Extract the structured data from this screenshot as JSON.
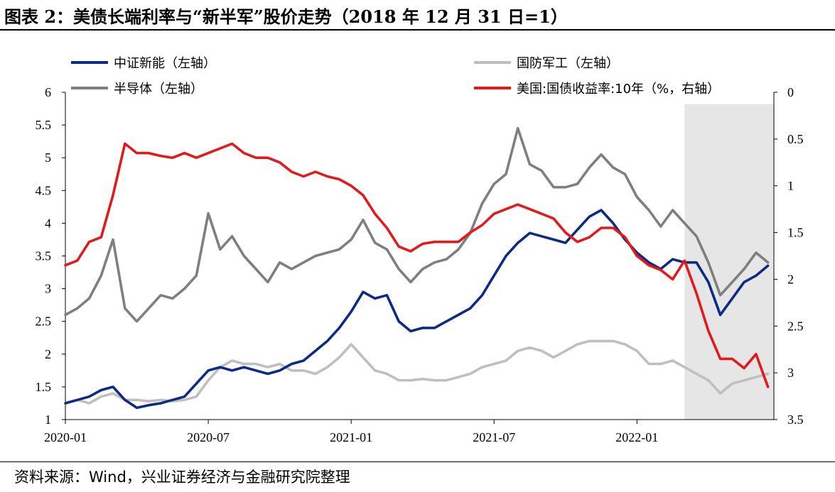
{
  "title": "图表 2：美债长端利率与“新半军”股价走势（2018 年 12 月 31 日=1）",
  "source": "资料来源：Wind，兴业证券经济与金融研究院整理",
  "chart_data": {
    "type": "line",
    "title": "图表 2：美债长端利率与“新半军”股价走势（2018 年 12 月 31 日=1）",
    "x_range": [
      "2020-01",
      "2022-06"
    ],
    "x_ticks": [
      "2020-01",
      "2020-07",
      "2021-01",
      "2021-07",
      "2022-01"
    ],
    "y_left": {
      "range": [
        1,
        6
      ],
      "ticks": [
        "1",
        "1.5",
        "2",
        "2.5",
        "3",
        "3.5",
        "4",
        "4.5",
        "5",
        "5.5",
        "6"
      ]
    },
    "y_right": {
      "range": [
        0,
        3.5
      ],
      "inverted": true,
      "ticks": [
        "0",
        "0.5",
        "1",
        "1.5",
        "2",
        "2.5",
        "3",
        "3.5"
      ]
    },
    "shaded_period": [
      "2022-03",
      "2022-06"
    ],
    "legend_placement": "top",
    "series": [
      {
        "name": "中证新能（左轴）",
        "axis": "left",
        "color": "#0d2b84",
        "points": [
          [
            "2020-01",
            1.25
          ],
          [
            "2020-01-16",
            1.3
          ],
          [
            "2020-02",
            1.35
          ],
          [
            "2020-02-16",
            1.45
          ],
          [
            "2020-03-01",
            1.5
          ],
          [
            "2020-03-16",
            1.3
          ],
          [
            "2020-04",
            1.18
          ],
          [
            "2020-04-16",
            1.22
          ],
          [
            "2020-05",
            1.25
          ],
          [
            "2020-05-16",
            1.3
          ],
          [
            "2020-06",
            1.35
          ],
          [
            "2020-06-16",
            1.55
          ],
          [
            "2020-07",
            1.75
          ],
          [
            "2020-07-16",
            1.8
          ],
          [
            "2020-08",
            1.75
          ],
          [
            "2020-08-16",
            1.8
          ],
          [
            "2020-09",
            1.75
          ],
          [
            "2020-09-16",
            1.7
          ],
          [
            "2020-10",
            1.75
          ],
          [
            "2020-10-16",
            1.85
          ],
          [
            "2020-11",
            1.9
          ],
          [
            "2020-11-16",
            2.05
          ],
          [
            "2020-12",
            2.2
          ],
          [
            "2020-12-16",
            2.4
          ],
          [
            "2021-01",
            2.65
          ],
          [
            "2021-01-16",
            2.95
          ],
          [
            "2021-02",
            2.85
          ],
          [
            "2021-02-16",
            2.9
          ],
          [
            "2021-03",
            2.5
          ],
          [
            "2021-03-16",
            2.35
          ],
          [
            "2021-04",
            2.4
          ],
          [
            "2021-04-16",
            2.4
          ],
          [
            "2021-05",
            2.5
          ],
          [
            "2021-05-16",
            2.6
          ],
          [
            "2021-06",
            2.7
          ],
          [
            "2021-06-16",
            2.9
          ],
          [
            "2021-07",
            3.2
          ],
          [
            "2021-07-16",
            3.5
          ],
          [
            "2021-08",
            3.7
          ],
          [
            "2021-08-16",
            3.85
          ],
          [
            "2021-09",
            3.8
          ],
          [
            "2021-09-16",
            3.75
          ],
          [
            "2021-10",
            3.7
          ],
          [
            "2021-10-16",
            3.9
          ],
          [
            "2021-11",
            4.1
          ],
          [
            "2021-11-16",
            4.2
          ],
          [
            "2021-12",
            4.0
          ],
          [
            "2021-12-16",
            3.75
          ],
          [
            "2022-01",
            3.55
          ],
          [
            "2022-01-16",
            3.4
          ],
          [
            "2022-02",
            3.3
          ],
          [
            "2022-02-16",
            3.45
          ],
          [
            "2022-03",
            3.4
          ],
          [
            "2022-03-16",
            3.4
          ],
          [
            "2022-04",
            3.1
          ],
          [
            "2022-04-16",
            2.6
          ],
          [
            "2022-05",
            2.85
          ],
          [
            "2022-05-16",
            3.1
          ],
          [
            "2022-06",
            3.2
          ],
          [
            "2022-06-16",
            3.35
          ]
        ]
      },
      {
        "name": "国防军工（左轴）",
        "axis": "left",
        "color": "#bfbfbf",
        "points": [
          [
            "2020-01",
            1.25
          ],
          [
            "2020-01-16",
            1.3
          ],
          [
            "2020-02",
            1.25
          ],
          [
            "2020-02-16",
            1.35
          ],
          [
            "2020-03-01",
            1.4
          ],
          [
            "2020-03-16",
            1.3
          ],
          [
            "2020-04",
            1.3
          ],
          [
            "2020-04-16",
            1.28
          ],
          [
            "2020-05",
            1.3
          ],
          [
            "2020-05-16",
            1.28
          ],
          [
            "2020-06",
            1.3
          ],
          [
            "2020-06-16",
            1.35
          ],
          [
            "2020-07",
            1.6
          ],
          [
            "2020-07-16",
            1.8
          ],
          [
            "2020-08",
            1.9
          ],
          [
            "2020-08-16",
            1.85
          ],
          [
            "2020-09",
            1.85
          ],
          [
            "2020-09-16",
            1.8
          ],
          [
            "2020-10",
            1.85
          ],
          [
            "2020-10-16",
            1.75
          ],
          [
            "2020-11",
            1.75
          ],
          [
            "2020-11-16",
            1.7
          ],
          [
            "2020-12",
            1.8
          ],
          [
            "2020-12-16",
            1.95
          ],
          [
            "2021-01",
            2.15
          ],
          [
            "2021-01-16",
            1.95
          ],
          [
            "2021-02",
            1.75
          ],
          [
            "2021-02-16",
            1.7
          ],
          [
            "2021-03",
            1.6
          ],
          [
            "2021-03-16",
            1.6
          ],
          [
            "2021-04",
            1.62
          ],
          [
            "2021-04-16",
            1.6
          ],
          [
            "2021-05",
            1.6
          ],
          [
            "2021-05-16",
            1.65
          ],
          [
            "2021-06",
            1.7
          ],
          [
            "2021-06-16",
            1.8
          ],
          [
            "2021-07",
            1.85
          ],
          [
            "2021-07-16",
            1.9
          ],
          [
            "2021-08",
            2.05
          ],
          [
            "2021-08-16",
            2.1
          ],
          [
            "2021-09",
            2.05
          ],
          [
            "2021-09-16",
            1.95
          ],
          [
            "2021-10",
            2.05
          ],
          [
            "2021-10-16",
            2.15
          ],
          [
            "2021-11",
            2.2
          ],
          [
            "2021-11-16",
            2.2
          ],
          [
            "2021-12",
            2.2
          ],
          [
            "2021-12-16",
            2.15
          ],
          [
            "2022-01",
            2.05
          ],
          [
            "2022-01-16",
            1.85
          ],
          [
            "2022-02",
            1.85
          ],
          [
            "2022-02-16",
            1.9
          ],
          [
            "2022-03",
            1.8
          ],
          [
            "2022-03-16",
            1.7
          ],
          [
            "2022-04",
            1.6
          ],
          [
            "2022-04-16",
            1.4
          ],
          [
            "2022-05",
            1.55
          ],
          [
            "2022-05-16",
            1.6
          ],
          [
            "2022-06",
            1.65
          ],
          [
            "2022-06-16",
            1.7
          ]
        ]
      },
      {
        "name": "半导体（左轴）",
        "axis": "left",
        "color": "#7f7f7f",
        "points": [
          [
            "2020-01",
            2.6
          ],
          [
            "2020-01-16",
            2.7
          ],
          [
            "2020-02",
            2.85
          ],
          [
            "2020-02-16",
            3.2
          ],
          [
            "2020-03-01",
            3.75
          ],
          [
            "2020-03-16",
            2.7
          ],
          [
            "2020-04",
            2.5
          ],
          [
            "2020-04-16",
            2.7
          ],
          [
            "2020-05",
            2.9
          ],
          [
            "2020-05-16",
            2.85
          ],
          [
            "2020-06",
            3.0
          ],
          [
            "2020-06-16",
            3.2
          ],
          [
            "2020-07",
            4.15
          ],
          [
            "2020-07-16",
            3.6
          ],
          [
            "2020-08",
            3.8
          ],
          [
            "2020-08-16",
            3.5
          ],
          [
            "2020-09",
            3.3
          ],
          [
            "2020-09-16",
            3.1
          ],
          [
            "2020-10",
            3.4
          ],
          [
            "2020-10-16",
            3.3
          ],
          [
            "2020-11",
            3.4
          ],
          [
            "2020-11-16",
            3.5
          ],
          [
            "2020-12",
            3.55
          ],
          [
            "2020-12-16",
            3.6
          ],
          [
            "2021-01",
            3.75
          ],
          [
            "2021-01-16",
            4.05
          ],
          [
            "2021-02",
            3.7
          ],
          [
            "2021-02-16",
            3.6
          ],
          [
            "2021-03",
            3.3
          ],
          [
            "2021-03-16",
            3.1
          ],
          [
            "2021-04",
            3.3
          ],
          [
            "2021-04-16",
            3.4
          ],
          [
            "2021-05",
            3.45
          ],
          [
            "2021-05-16",
            3.6
          ],
          [
            "2021-06",
            3.85
          ],
          [
            "2021-06-16",
            4.3
          ],
          [
            "2021-07",
            4.6
          ],
          [
            "2021-07-16",
            4.75
          ],
          [
            "2021-08",
            5.45
          ],
          [
            "2021-08-16",
            4.9
          ],
          [
            "2021-09",
            4.8
          ],
          [
            "2021-09-16",
            4.55
          ],
          [
            "2021-10",
            4.55
          ],
          [
            "2021-10-16",
            4.6
          ],
          [
            "2021-11",
            4.85
          ],
          [
            "2021-11-16",
            5.05
          ],
          [
            "2021-12",
            4.85
          ],
          [
            "2021-12-16",
            4.75
          ],
          [
            "2022-01",
            4.4
          ],
          [
            "2022-01-16",
            4.2
          ],
          [
            "2022-02",
            3.95
          ],
          [
            "2022-02-16",
            4.2
          ],
          [
            "2022-03",
            4.0
          ],
          [
            "2022-03-16",
            3.8
          ],
          [
            "2022-04",
            3.4
          ],
          [
            "2022-04-16",
            2.9
          ],
          [
            "2022-05",
            3.1
          ],
          [
            "2022-05-16",
            3.3
          ],
          [
            "2022-06",
            3.55
          ],
          [
            "2022-06-16",
            3.4
          ]
        ]
      },
      {
        "name": "美国:国债收益率:10年（%，右轴）",
        "axis": "right",
        "color": "#e31a1c",
        "points": [
          [
            "2020-01",
            1.85
          ],
          [
            "2020-01-16",
            1.8
          ],
          [
            "2020-02",
            1.6
          ],
          [
            "2020-02-16",
            1.55
          ],
          [
            "2020-03-01",
            1.1
          ],
          [
            "2020-03-16",
            0.55
          ],
          [
            "2020-04",
            0.65
          ],
          [
            "2020-04-16",
            0.65
          ],
          [
            "2020-05",
            0.68
          ],
          [
            "2020-05-16",
            0.7
          ],
          [
            "2020-06",
            0.65
          ],
          [
            "2020-06-16",
            0.7
          ],
          [
            "2020-07",
            0.65
          ],
          [
            "2020-07-16",
            0.6
          ],
          [
            "2020-08",
            0.55
          ],
          [
            "2020-08-16",
            0.65
          ],
          [
            "2020-09",
            0.7
          ],
          [
            "2020-09-16",
            0.7
          ],
          [
            "2020-10",
            0.75
          ],
          [
            "2020-10-16",
            0.85
          ],
          [
            "2020-11",
            0.9
          ],
          [
            "2020-11-16",
            0.85
          ],
          [
            "2020-12",
            0.9
          ],
          [
            "2020-12-16",
            0.93
          ],
          [
            "2021-01",
            1.0
          ],
          [
            "2021-01-16",
            1.1
          ],
          [
            "2021-02",
            1.3
          ],
          [
            "2021-02-16",
            1.45
          ],
          [
            "2021-03",
            1.65
          ],
          [
            "2021-03-16",
            1.7
          ],
          [
            "2021-04",
            1.62
          ],
          [
            "2021-04-16",
            1.6
          ],
          [
            "2021-05",
            1.6
          ],
          [
            "2021-05-16",
            1.6
          ],
          [
            "2021-06",
            1.5
          ],
          [
            "2021-06-16",
            1.42
          ],
          [
            "2021-07",
            1.3
          ],
          [
            "2021-07-16",
            1.25
          ],
          [
            "2021-08",
            1.2
          ],
          [
            "2021-08-16",
            1.25
          ],
          [
            "2021-09",
            1.3
          ],
          [
            "2021-09-16",
            1.35
          ],
          [
            "2021-10",
            1.5
          ],
          [
            "2021-10-16",
            1.6
          ],
          [
            "2021-11",
            1.55
          ],
          [
            "2021-11-16",
            1.45
          ],
          [
            "2021-12",
            1.45
          ],
          [
            "2021-12-16",
            1.55
          ],
          [
            "2022-01",
            1.75
          ],
          [
            "2022-01-16",
            1.85
          ],
          [
            "2022-02",
            1.9
          ],
          [
            "2022-02-16",
            2.0
          ],
          [
            "2022-03",
            1.8
          ],
          [
            "2022-03-16",
            2.15
          ],
          [
            "2022-04",
            2.55
          ],
          [
            "2022-04-16",
            2.85
          ],
          [
            "2022-05",
            2.85
          ],
          [
            "2022-05-16",
            2.95
          ],
          [
            "2022-06",
            2.8
          ],
          [
            "2022-06-16",
            3.15
          ]
        ]
      }
    ]
  }
}
